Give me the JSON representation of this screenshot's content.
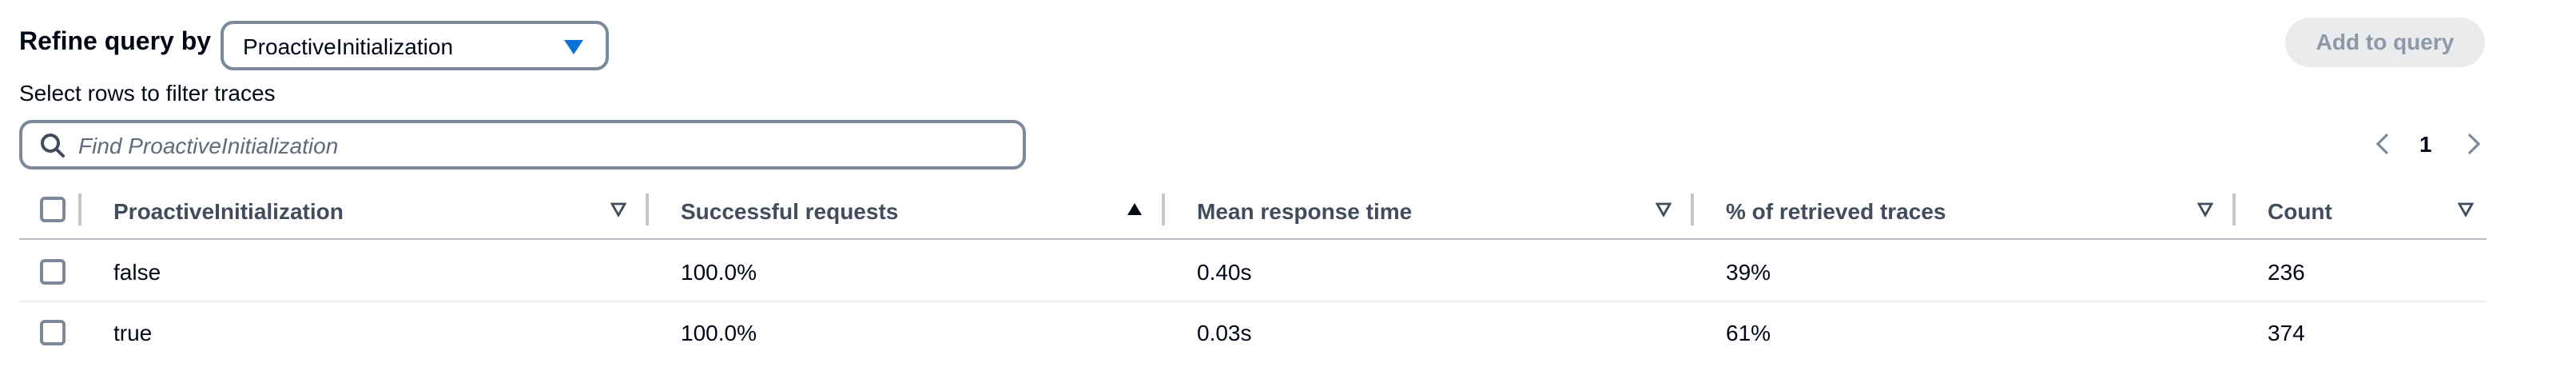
{
  "header": {
    "refine_label": "Refine query by",
    "select_value": "ProactiveInitialization",
    "add_button_label": "Add to query",
    "subtitle": "Select rows to filter traces"
  },
  "search": {
    "placeholder": "Find ProactiveInitialization"
  },
  "pagination": {
    "current_page": "1"
  },
  "table": {
    "columns": [
      {
        "label": "ProactiveInitialization",
        "sort": "unsorted"
      },
      {
        "label": "Successful requests",
        "sort": "ascending"
      },
      {
        "label": "Mean response time",
        "sort": "unsorted"
      },
      {
        "label": "% of retrieved traces",
        "sort": "unsorted"
      },
      {
        "label": "Count",
        "sort": "unsorted"
      }
    ],
    "rows": [
      {
        "value": "false",
        "successful": "100.0%",
        "mean_time": "0.40s",
        "percent": "39%",
        "count": "236",
        "selected": false
      },
      {
        "value": "true",
        "successful": "100.0%",
        "mean_time": "0.03s",
        "percent": "61%",
        "count": "374",
        "selected": false
      }
    ]
  },
  "colors": {
    "text": "#000716",
    "header_text": "#414d5c",
    "accent": "#0972d3",
    "border": "#7d8998",
    "disabled_bg": "#e9ebed",
    "disabled_text": "#8d99a8"
  },
  "icons": {
    "dropdown": "caret-down-icon",
    "search": "search-icon",
    "prev": "chevron-left-icon",
    "next": "chevron-right-icon",
    "sort_unsorted": "sort-outline-icon",
    "sort_ascending": "sort-ascending-icon"
  }
}
